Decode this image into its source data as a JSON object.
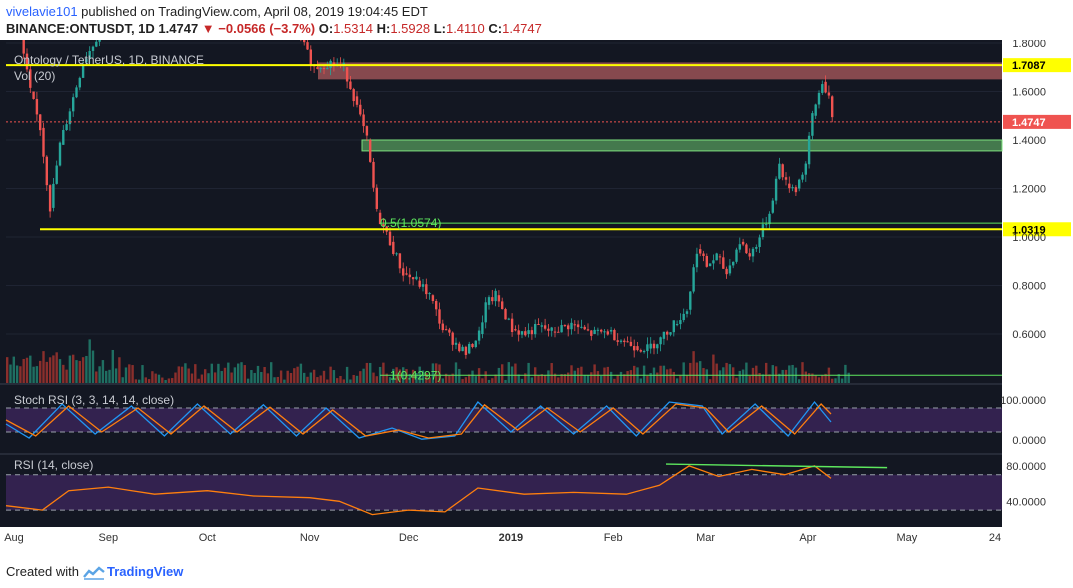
{
  "header": {
    "user": "vivelavie101",
    "published": " published on TradingView.com, April 08, 2019 19:04:45 EDT",
    "symbol": "BINANCE:ONTUSDT, 1D",
    "last": " 1.4747 ",
    "down_arrow": "▼",
    "change": " −0.0566 (−3.7%)",
    "o_label": " O:",
    "o_val": "1.5314",
    "h_label": " H:",
    "h_val": "1.5928",
    "l_label": " L:",
    "l_val": "1.4110",
    "c_label": " C:",
    "c_val": "1.4747"
  },
  "footer": {
    "created": "Created with",
    "brand": "TradingView"
  },
  "colors": {
    "bg": "#131722",
    "up": "#26a69a",
    "down": "#ef5350",
    "yellow": "#ffff00",
    "green_line": "#5ee85e",
    "rsi_fill": "#4a2a6e",
    "rsi_line": "#ff7f0e",
    "stoch_k": "#2196f3",
    "stoch_d": "#ff7f0e"
  },
  "chart_data": [
    {
      "type": "candlestick",
      "title": "Ontology / TetherUS, 1D, BINANCE",
      "volume_label": "Vol (20)",
      "ylim": [
        0.4,
        1.8
      ],
      "y_ticks": [
        "1.8000",
        "1.6000",
        "1.4000",
        "1.2000",
        "1.0000",
        "0.8000",
        "0.6000"
      ],
      "x_ticks": [
        "Aug",
        "Sep",
        "Oct",
        "Nov",
        "Dec",
        "2019",
        "Feb",
        "Mar",
        "Apr",
        "May",
        "24"
      ],
      "date_range": [
        "2018-08-01",
        "2019-04-08"
      ],
      "close_series": [
        {
          "date": "2018-08-01",
          "close": 1.9
        },
        {
          "date": "2018-08-05",
          "close": 1.6
        },
        {
          "date": "2018-08-09",
          "close": 1.45
        },
        {
          "date": "2018-08-12",
          "close": 1.12
        },
        {
          "date": "2018-08-15",
          "close": 1.38
        },
        {
          "date": "2018-08-18",
          "close": 1.72
        },
        {
          "date": "2018-08-25",
          "close": 2.0
        },
        {
          "date": "2018-09-05",
          "close": 2.2
        },
        {
          "date": "2018-09-15",
          "close": 1.95
        },
        {
          "date": "2018-09-25",
          "close": 2.05
        },
        {
          "date": "2018-10-05",
          "close": 1.98
        },
        {
          "date": "2018-10-15",
          "close": 1.92
        },
        {
          "date": "2018-10-25",
          "close": 1.84
        },
        {
          "date": "2018-10-29",
          "close": 1.7
        },
        {
          "date": "2018-11-03",
          "close": 1.72
        },
        {
          "date": "2018-11-08",
          "close": 1.7
        },
        {
          "date": "2018-11-12",
          "close": 1.58
        },
        {
          "date": "2018-11-15",
          "close": 1.4
        },
        {
          "date": "2018-11-19",
          "close": 1.1
        },
        {
          "date": "2018-11-22",
          "close": 0.98
        },
        {
          "date": "2018-11-26",
          "close": 0.85
        },
        {
          "date": "2018-11-30",
          "close": 0.82
        },
        {
          "date": "2018-12-04",
          "close": 0.76
        },
        {
          "date": "2018-12-08",
          "close": 0.62
        },
        {
          "date": "2018-12-12",
          "close": 0.56
        },
        {
          "date": "2018-12-16",
          "close": 0.52
        },
        {
          "date": "2018-12-19",
          "close": 0.6
        },
        {
          "date": "2018-12-23",
          "close": 0.72
        },
        {
          "date": "2018-12-25",
          "close": 0.76
        },
        {
          "date": "2018-12-28",
          "close": 0.62
        },
        {
          "date": "2019-01-02",
          "close": 0.6
        },
        {
          "date": "2019-01-06",
          "close": 0.63
        },
        {
          "date": "2019-01-10",
          "close": 0.61
        },
        {
          "date": "2019-01-14",
          "close": 0.64
        },
        {
          "date": "2019-01-20",
          "close": 0.6
        },
        {
          "date": "2019-01-26",
          "close": 0.61
        },
        {
          "date": "2019-01-31",
          "close": 0.57
        },
        {
          "date": "2019-02-05",
          "close": 0.55
        },
        {
          "date": "2019-02-08",
          "close": 0.54
        },
        {
          "date": "2019-02-12",
          "close": 0.58
        },
        {
          "date": "2019-02-16",
          "close": 0.64
        },
        {
          "date": "2019-02-20",
          "close": 0.7
        },
        {
          "date": "2019-02-24",
          "close": 0.95
        },
        {
          "date": "2019-02-27",
          "close": 0.88
        },
        {
          "date": "2019-03-02",
          "close": 0.92
        },
        {
          "date": "2019-03-05",
          "close": 0.85
        },
        {
          "date": "2019-03-08",
          "close": 0.98
        },
        {
          "date": "2019-03-12",
          "close": 0.92
        },
        {
          "date": "2019-03-15",
          "close": 1.0
        },
        {
          "date": "2019-03-18",
          "close": 1.1
        },
        {
          "date": "2019-03-21",
          "close": 1.3
        },
        {
          "date": "2019-03-24",
          "close": 1.22
        },
        {
          "date": "2019-03-26",
          "close": 1.2
        },
        {
          "date": "2019-03-29",
          "close": 1.3
        },
        {
          "date": "2019-04-01",
          "close": 1.5
        },
        {
          "date": "2019-04-03",
          "close": 1.64
        },
        {
          "date": "2019-04-06",
          "close": 1.58
        },
        {
          "date": "2019-04-08",
          "close": 1.4747
        }
      ],
      "resistance_zone": [
        1.65,
        1.72
      ],
      "support_zone": [
        1.355,
        1.4
      ],
      "levels": [
        {
          "value": 1.7087,
          "label": "1.7087",
          "style": "yellow"
        },
        {
          "value": 1.4747,
          "label": "1.4747",
          "style": "last-price"
        },
        {
          "value": 1.0319,
          "label": "1.0319",
          "style": "yellow"
        }
      ],
      "fib_labels": [
        {
          "text": "0.5(1.0574)",
          "value": 1.0574
        },
        {
          "text": "1(0.4297)",
          "value": 0.4297
        }
      ]
    },
    {
      "type": "line",
      "title": "Stoch RSI (3, 3, 14, 14, close)",
      "ylim": [
        0,
        100
      ],
      "y_ticks": [
        "100.0000",
        "0.0000"
      ],
      "bands": [
        80,
        20
      ],
      "series": [
        {
          "name": "K",
          "color": "#2196f3",
          "values": [
            {
              "date": "2018-08-01",
              "v": 40
            },
            {
              "date": "2018-08-08",
              "v": 5
            },
            {
              "date": "2018-08-18",
              "v": 90
            },
            {
              "date": "2018-08-28",
              "v": 15
            },
            {
              "date": "2018-09-08",
              "v": 85
            },
            {
              "date": "2018-09-18",
              "v": 10
            },
            {
              "date": "2018-09-28",
              "v": 90
            },
            {
              "date": "2018-10-08",
              "v": 15
            },
            {
              "date": "2018-10-18",
              "v": 88
            },
            {
              "date": "2018-10-28",
              "v": 10
            },
            {
              "date": "2018-11-06",
              "v": 80
            },
            {
              "date": "2018-11-16",
              "v": 5
            },
            {
              "date": "2018-11-26",
              "v": 30
            },
            {
              "date": "2018-12-05",
              "v": 2
            },
            {
              "date": "2018-12-15",
              "v": 10
            },
            {
              "date": "2018-12-22",
              "v": 95
            },
            {
              "date": "2019-01-01",
              "v": 20
            },
            {
              "date": "2019-01-10",
              "v": 85
            },
            {
              "date": "2019-01-20",
              "v": 15
            },
            {
              "date": "2019-01-30",
              "v": 85
            },
            {
              "date": "2019-02-08",
              "v": 10
            },
            {
              "date": "2019-02-18",
              "v": 95
            },
            {
              "date": "2019-02-28",
              "v": 85
            },
            {
              "date": "2019-03-06",
              "v": 15
            },
            {
              "date": "2019-03-16",
              "v": 90
            },
            {
              "date": "2019-03-26",
              "v": 10
            },
            {
              "date": "2019-04-03",
              "v": 95
            },
            {
              "date": "2019-04-08",
              "v": 45
            }
          ]
        },
        {
          "name": "D",
          "color": "#ff7f0e",
          "values": [
            {
              "date": "2018-08-01",
              "v": 50
            },
            {
              "date": "2018-08-10",
              "v": 10
            },
            {
              "date": "2018-08-20",
              "v": 85
            },
            {
              "date": "2018-08-30",
              "v": 20
            },
            {
              "date": "2018-09-10",
              "v": 80
            },
            {
              "date": "2018-09-20",
              "v": 15
            },
            {
              "date": "2018-09-30",
              "v": 85
            },
            {
              "date": "2018-10-10",
              "v": 20
            },
            {
              "date": "2018-10-20",
              "v": 82
            },
            {
              "date": "2018-10-30",
              "v": 15
            },
            {
              "date": "2018-11-08",
              "v": 75
            },
            {
              "date": "2018-11-18",
              "v": 10
            },
            {
              "date": "2018-11-28",
              "v": 25
            },
            {
              "date": "2018-12-07",
              "v": 5
            },
            {
              "date": "2018-12-17",
              "v": 15
            },
            {
              "date": "2018-12-24",
              "v": 88
            },
            {
              "date": "2019-01-03",
              "v": 25
            },
            {
              "date": "2019-01-12",
              "v": 80
            },
            {
              "date": "2019-01-22",
              "v": 20
            },
            {
              "date": "2019-02-01",
              "v": 80
            },
            {
              "date": "2019-02-10",
              "v": 15
            },
            {
              "date": "2019-02-20",
              "v": 90
            },
            {
              "date": "2019-03-01",
              "v": 80
            },
            {
              "date": "2019-03-08",
              "v": 20
            },
            {
              "date": "2019-03-18",
              "v": 85
            },
            {
              "date": "2019-03-28",
              "v": 15
            },
            {
              "date": "2019-04-05",
              "v": 90
            },
            {
              "date": "2019-04-08",
              "v": 65
            }
          ]
        }
      ]
    },
    {
      "type": "line",
      "title": "RSI (14, close)",
      "ylim": [
        20,
        90
      ],
      "y_ticks": [
        "80.0000",
        "40.0000"
      ],
      "bands": [
        70,
        30
      ],
      "series": [
        {
          "name": "RSI",
          "color": "#ff7f0e",
          "values": [
            {
              "date": "2018-08-01",
              "v": 35
            },
            {
              "date": "2018-08-12",
              "v": 30
            },
            {
              "date": "2018-08-20",
              "v": 52
            },
            {
              "date": "2018-09-01",
              "v": 56
            },
            {
              "date": "2018-09-15",
              "v": 48
            },
            {
              "date": "2018-10-01",
              "v": 52
            },
            {
              "date": "2018-10-15",
              "v": 46
            },
            {
              "date": "2018-11-01",
              "v": 44
            },
            {
              "date": "2018-11-10",
              "v": 40
            },
            {
              "date": "2018-11-20",
              "v": 25
            },
            {
              "date": "2018-12-01",
              "v": 30
            },
            {
              "date": "2018-12-12",
              "v": 28
            },
            {
              "date": "2018-12-22",
              "v": 55
            },
            {
              "date": "2019-01-05",
              "v": 48
            },
            {
              "date": "2019-01-20",
              "v": 50
            },
            {
              "date": "2019-02-05",
              "v": 48
            },
            {
              "date": "2019-02-15",
              "v": 58
            },
            {
              "date": "2019-02-24",
              "v": 80
            },
            {
              "date": "2019-03-05",
              "v": 68
            },
            {
              "date": "2019-03-15",
              "v": 76
            },
            {
              "date": "2019-03-25",
              "v": 70
            },
            {
              "date": "2019-04-03",
              "v": 80
            },
            {
              "date": "2019-04-08",
              "v": 66
            }
          ]
        }
      ],
      "trendline": [
        {
          "date": "2019-02-17",
          "v": 82
        },
        {
          "date": "2019-04-25",
          "v": 78
        }
      ]
    }
  ]
}
